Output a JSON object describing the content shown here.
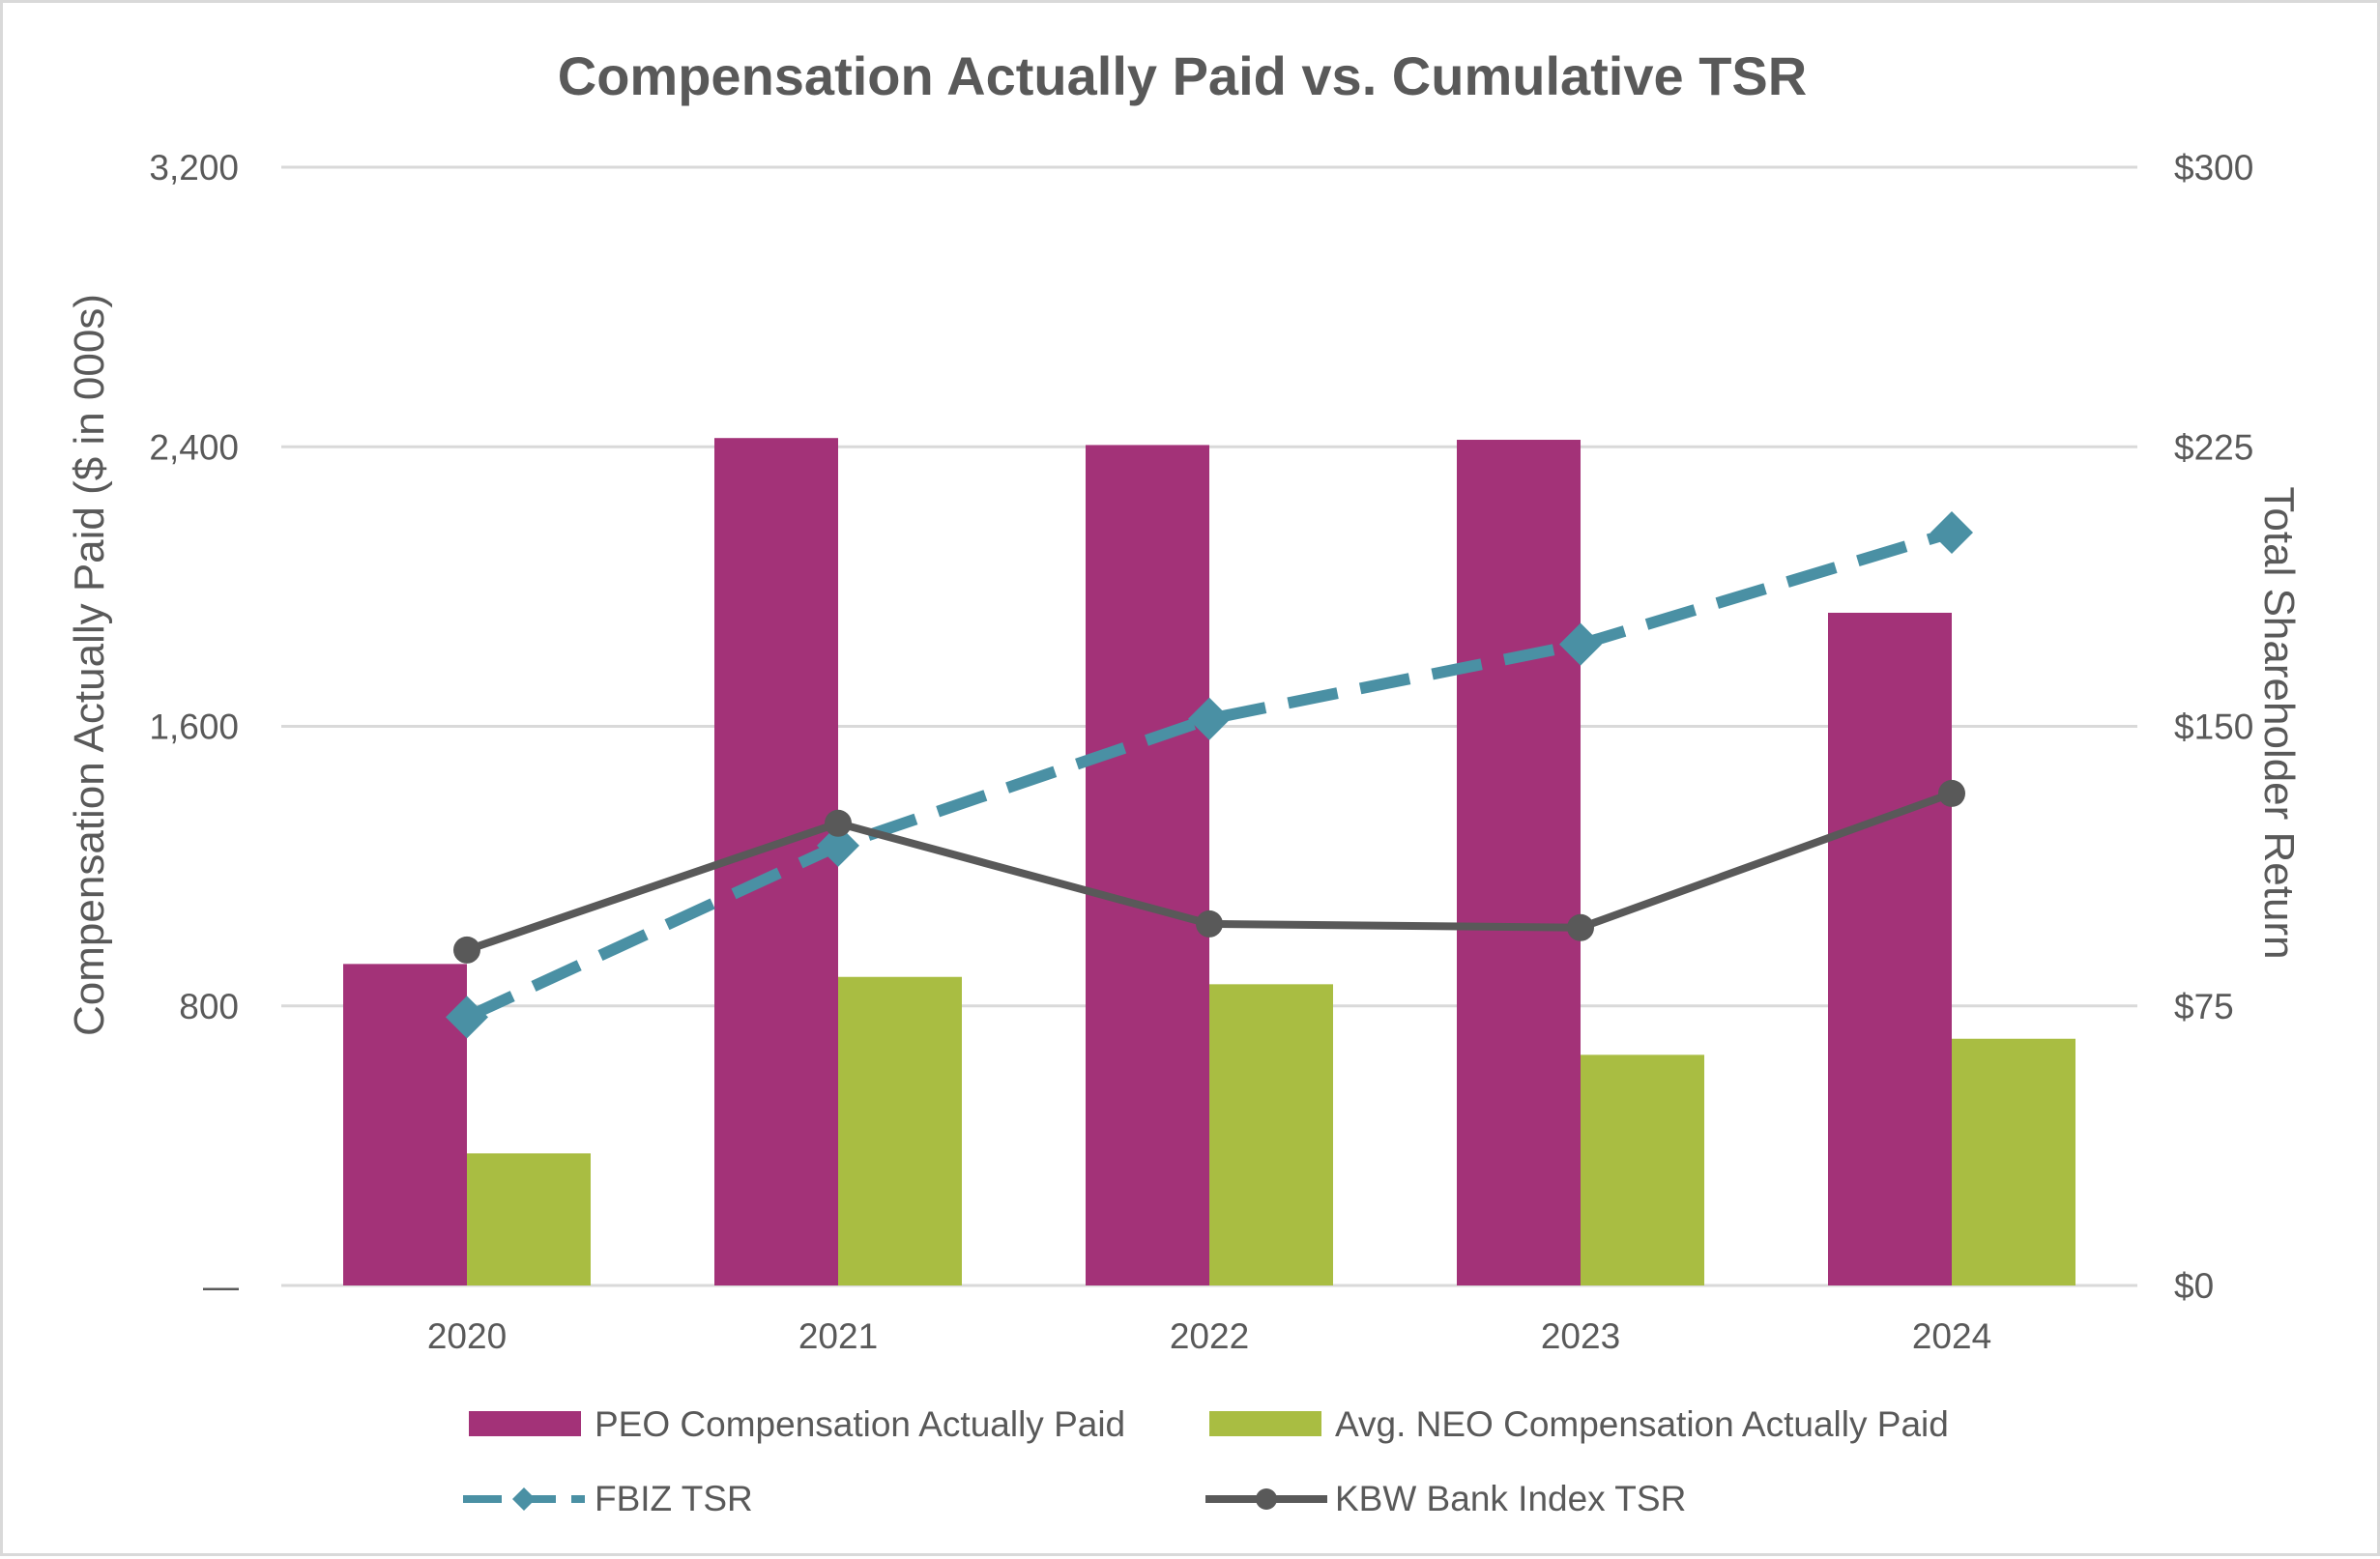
{
  "chart_data": {
    "type": "bar",
    "title": "Compensation Actually Paid vs. Cumulative TSR",
    "categories": [
      "2020",
      "2021",
      "2022",
      "2023",
      "2024"
    ],
    "y_left": {
      "label": "Compensation Actually Paid ($ in 000s)",
      "ylim": [
        0,
        3200
      ],
      "ticks": [
        0,
        800,
        1600,
        2400,
        3200
      ],
      "tick_labels": [
        "—",
        "800",
        "1,600",
        "2,400",
        "3,200"
      ]
    },
    "y_right": {
      "label": "Total Shareholder Return",
      "ylim": [
        0,
        300
      ],
      "ticks": [
        0,
        75,
        150,
        225,
        300
      ],
      "tick_labels": [
        "$0",
        "$75",
        "$150",
        "$225",
        "$300"
      ]
    },
    "grid": true,
    "legend_position": "bottom",
    "series": [
      {
        "name": "PEO Compensation Actually Paid",
        "kind": "bar",
        "axis": "left",
        "color": "#A33278",
        "values": [
          920,
          2425,
          2405,
          2420,
          1925
        ]
      },
      {
        "name": "Avg. NEO Compensation Actually Paid",
        "kind": "bar",
        "axis": "left",
        "color": "#A9BD42",
        "values": [
          378,
          883,
          862,
          660,
          706
        ]
      },
      {
        "name": "FBIZ TSR",
        "kind": "line",
        "style": "dashed",
        "marker": "diamond",
        "axis": "right",
        "color": "#4A90A4",
        "values": [
          72,
          118,
          152,
          172,
          202
        ]
      },
      {
        "name": "KBW Bank Index TSR",
        "kind": "line",
        "style": "solid",
        "marker": "circle",
        "axis": "right",
        "color": "#595959",
        "values": [
          90,
          124,
          97,
          96,
          132
        ]
      }
    ]
  }
}
